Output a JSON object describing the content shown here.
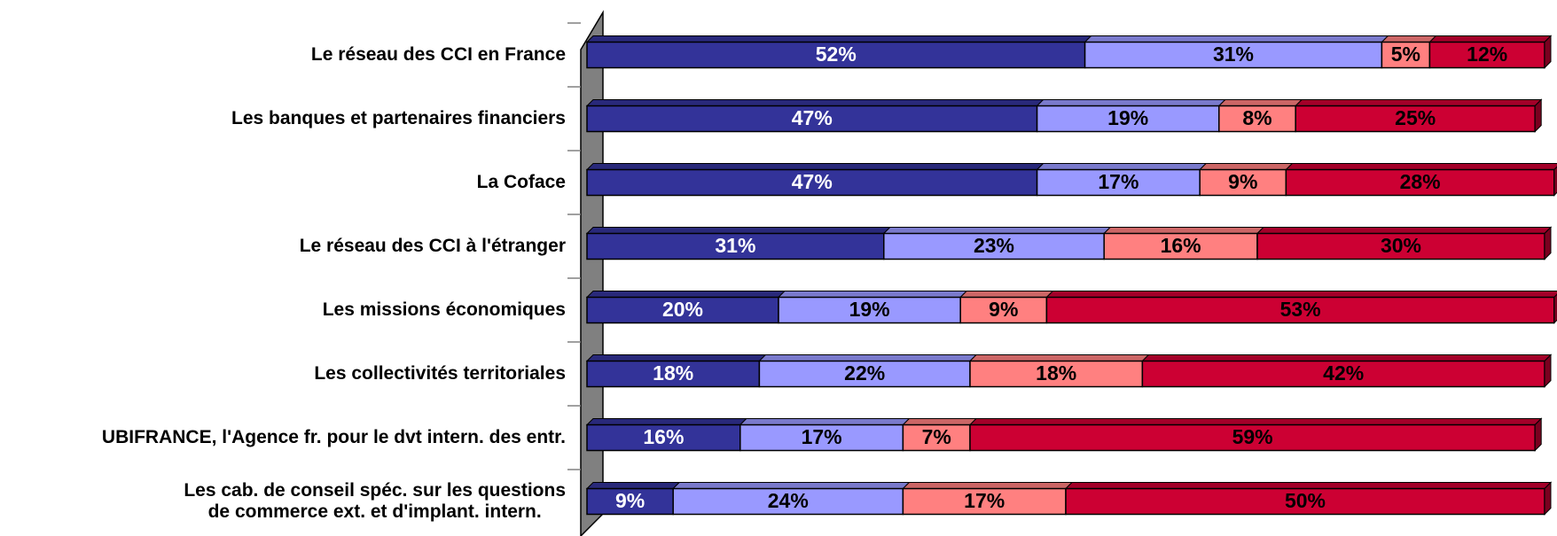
{
  "chart_data": {
    "type": "stacked_bar_horizontal",
    "categories": [
      "Le réseau des CCI en France",
      "Les banques et partenaires financiers",
      "La Coface",
      "Le réseau des CCI à l'étranger",
      "Les missions économiques",
      "Les collectivités territoriales",
      "UBIFRANCE, l'Agence fr. pour le dvt intern. des entr.",
      "Les cab. de conseil spéc. sur les questions\nde commerce ext. et d'implant. intern."
    ],
    "xlim": [
      0,
      100
    ],
    "series": [
      {
        "color": "#333399",
        "values": [
          52,
          47,
          47,
          31,
          20,
          18,
          16,
          9
        ],
        "value_labels": [
          "52%",
          "47%",
          "47%",
          "31%",
          "20%",
          "18%",
          "16%",
          "9%"
        ]
      },
      {
        "color": "#9999ff",
        "values": [
          31,
          19,
          17,
          23,
          19,
          22,
          17,
          24
        ],
        "value_labels": [
          "31%",
          "19%",
          "17%",
          "23%",
          "19%",
          "22%",
          "17%",
          "24%"
        ]
      },
      {
        "color": "#ff8080",
        "values": [
          5,
          8,
          9,
          16,
          9,
          18,
          7,
          17
        ],
        "value_labels": [
          "5%",
          "8%",
          "9%",
          "16%",
          "9%",
          "18%",
          "7%",
          "17%"
        ]
      },
      {
        "color": "#cc0033",
        "values": [
          12,
          25,
          28,
          30,
          53,
          42,
          59,
          50
        ],
        "value_labels": [
          "12%",
          "25%",
          "28%",
          "30%",
          "53%",
          "42%",
          "59%",
          "50%"
        ]
      }
    ]
  }
}
